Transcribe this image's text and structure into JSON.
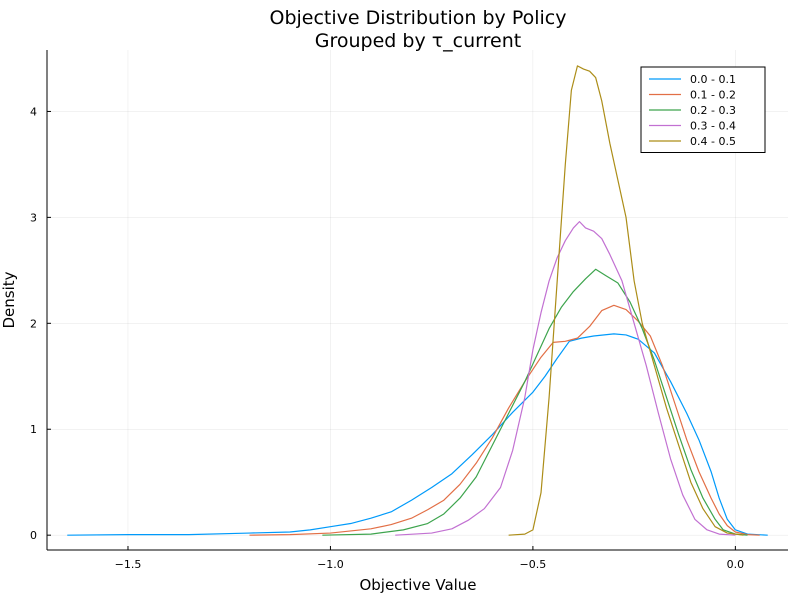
{
  "chart_data": {
    "type": "line",
    "title": "Objective Distribution by Policy",
    "subtitle": "Grouped by τ_current",
    "xlabel": "Objective Value",
    "ylabel": "Density",
    "xlim": [
      -1.7,
      0.13
    ],
    "ylim": [
      -0.14,
      4.58
    ],
    "xticks": [
      -1.5,
      -1.0,
      -0.5,
      0.0
    ],
    "xtick_labels": [
      "−1.5",
      "−1.0",
      "−0.5",
      "0.0"
    ],
    "yticks": [
      0,
      1,
      2,
      3,
      4
    ],
    "ytick_labels": [
      "0",
      "1",
      "2",
      "3",
      "4"
    ],
    "grid": true,
    "legend_position": "top-right",
    "series": [
      {
        "name": "0.0 - 0.1",
        "color": "#009AFA",
        "points": [
          [
            -1.65,
            0.0
          ],
          [
            -1.5,
            0.005
          ],
          [
            -1.35,
            0.005
          ],
          [
            -1.2,
            0.02
          ],
          [
            -1.1,
            0.03
          ],
          [
            -1.05,
            0.05
          ],
          [
            -1.0,
            0.08
          ],
          [
            -0.95,
            0.11
          ],
          [
            -0.9,
            0.16
          ],
          [
            -0.85,
            0.22
          ],
          [
            -0.8,
            0.33
          ],
          [
            -0.75,
            0.45
          ],
          [
            -0.7,
            0.58
          ],
          [
            -0.65,
            0.76
          ],
          [
            -0.6,
            0.95
          ],
          [
            -0.55,
            1.16
          ],
          [
            -0.5,
            1.35
          ],
          [
            -0.47,
            1.5
          ],
          [
            -0.44,
            1.67
          ],
          [
            -0.41,
            1.83
          ],
          [
            -0.38,
            1.86
          ],
          [
            -0.35,
            1.88
          ],
          [
            -0.3,
            1.9
          ],
          [
            -0.27,
            1.89
          ],
          [
            -0.24,
            1.85
          ],
          [
            -0.2,
            1.72
          ],
          [
            -0.16,
            1.45
          ],
          [
            -0.12,
            1.15
          ],
          [
            -0.09,
            0.9
          ],
          [
            -0.06,
            0.6
          ],
          [
            -0.04,
            0.35
          ],
          [
            -0.02,
            0.15
          ],
          [
            0.0,
            0.05
          ],
          [
            0.03,
            0.01
          ],
          [
            0.08,
            0.0
          ]
        ]
      },
      {
        "name": "0.1 - 0.2",
        "color": "#E26F46",
        "points": [
          [
            -1.2,
            0.0
          ],
          [
            -1.1,
            0.005
          ],
          [
            -1.0,
            0.02
          ],
          [
            -0.9,
            0.06
          ],
          [
            -0.85,
            0.1
          ],
          [
            -0.8,
            0.16
          ],
          [
            -0.76,
            0.24
          ],
          [
            -0.72,
            0.33
          ],
          [
            -0.68,
            0.48
          ],
          [
            -0.64,
            0.68
          ],
          [
            -0.6,
            0.92
          ],
          [
            -0.56,
            1.2
          ],
          [
            -0.52,
            1.45
          ],
          [
            -0.48,
            1.68
          ],
          [
            -0.45,
            1.82
          ],
          [
            -0.42,
            1.83
          ],
          [
            -0.39,
            1.86
          ],
          [
            -0.36,
            1.97
          ],
          [
            -0.33,
            2.12
          ],
          [
            -0.3,
            2.17
          ],
          [
            -0.27,
            2.13
          ],
          [
            -0.24,
            2.02
          ],
          [
            -0.21,
            1.88
          ],
          [
            -0.18,
            1.6
          ],
          [
            -0.15,
            1.25
          ],
          [
            -0.12,
            0.9
          ],
          [
            -0.09,
            0.6
          ],
          [
            -0.06,
            0.35
          ],
          [
            -0.04,
            0.2
          ],
          [
            -0.02,
            0.09
          ],
          [
            0.0,
            0.03
          ],
          [
            0.03,
            0.005
          ],
          [
            0.06,
            0.0
          ]
        ]
      },
      {
        "name": "0.2 - 0.3",
        "color": "#3DA44D",
        "points": [
          [
            -1.02,
            0.0
          ],
          [
            -0.9,
            0.01
          ],
          [
            -0.82,
            0.05
          ],
          [
            -0.76,
            0.11
          ],
          [
            -0.72,
            0.2
          ],
          [
            -0.68,
            0.35
          ],
          [
            -0.64,
            0.55
          ],
          [
            -0.6,
            0.85
          ],
          [
            -0.56,
            1.15
          ],
          [
            -0.52,
            1.45
          ],
          [
            -0.49,
            1.7
          ],
          [
            -0.46,
            1.95
          ],
          [
            -0.43,
            2.15
          ],
          [
            -0.4,
            2.3
          ],
          [
            -0.37,
            2.42
          ],
          [
            -0.345,
            2.51
          ],
          [
            -0.32,
            2.45
          ],
          [
            -0.29,
            2.38
          ],
          [
            -0.26,
            2.2
          ],
          [
            -0.23,
            1.95
          ],
          [
            -0.2,
            1.65
          ],
          [
            -0.17,
            1.3
          ],
          [
            -0.14,
            0.95
          ],
          [
            -0.11,
            0.62
          ],
          [
            -0.08,
            0.35
          ],
          [
            -0.05,
            0.15
          ],
          [
            -0.03,
            0.05
          ],
          [
            0.0,
            0.01
          ],
          [
            0.03,
            0.0
          ]
        ]
      },
      {
        "name": "0.3 - 0.4",
        "color": "#C271D2",
        "points": [
          [
            -0.84,
            0.0
          ],
          [
            -0.75,
            0.02
          ],
          [
            -0.7,
            0.06
          ],
          [
            -0.66,
            0.14
          ],
          [
            -0.62,
            0.25
          ],
          [
            -0.58,
            0.45
          ],
          [
            -0.55,
            0.8
          ],
          [
            -0.52,
            1.3
          ],
          [
            -0.5,
            1.75
          ],
          [
            -0.48,
            2.1
          ],
          [
            -0.46,
            2.4
          ],
          [
            -0.44,
            2.62
          ],
          [
            -0.42,
            2.78
          ],
          [
            -0.4,
            2.9
          ],
          [
            -0.385,
            2.96
          ],
          [
            -0.37,
            2.9
          ],
          [
            -0.35,
            2.87
          ],
          [
            -0.33,
            2.8
          ],
          [
            -0.31,
            2.65
          ],
          [
            -0.28,
            2.4
          ],
          [
            -0.25,
            2.0
          ],
          [
            -0.22,
            1.6
          ],
          [
            -0.19,
            1.15
          ],
          [
            -0.16,
            0.72
          ],
          [
            -0.13,
            0.38
          ],
          [
            -0.1,
            0.15
          ],
          [
            -0.07,
            0.05
          ],
          [
            -0.04,
            0.01
          ],
          [
            0.0,
            0.0
          ]
        ]
      },
      {
        "name": "0.4 - 0.5",
        "color": "#AC8D18",
        "points": [
          [
            -0.56,
            0.0
          ],
          [
            -0.52,
            0.01
          ],
          [
            -0.5,
            0.05
          ],
          [
            -0.48,
            0.4
          ],
          [
            -0.46,
            1.3
          ],
          [
            -0.44,
            2.4
          ],
          [
            -0.42,
            3.5
          ],
          [
            -0.405,
            4.2
          ],
          [
            -0.39,
            4.43
          ],
          [
            -0.375,
            4.4
          ],
          [
            -0.36,
            4.38
          ],
          [
            -0.345,
            4.32
          ],
          [
            -0.33,
            4.1
          ],
          [
            -0.31,
            3.7
          ],
          [
            -0.29,
            3.35
          ],
          [
            -0.27,
            3.0
          ],
          [
            -0.25,
            2.4
          ],
          [
            -0.23,
            2.0
          ],
          [
            -0.2,
            1.6
          ],
          [
            -0.17,
            1.2
          ],
          [
            -0.14,
            0.85
          ],
          [
            -0.11,
            0.5
          ],
          [
            -0.08,
            0.25
          ],
          [
            -0.05,
            0.08
          ],
          [
            -0.02,
            0.02
          ],
          [
            0.02,
            0.0
          ]
        ]
      }
    ]
  }
}
